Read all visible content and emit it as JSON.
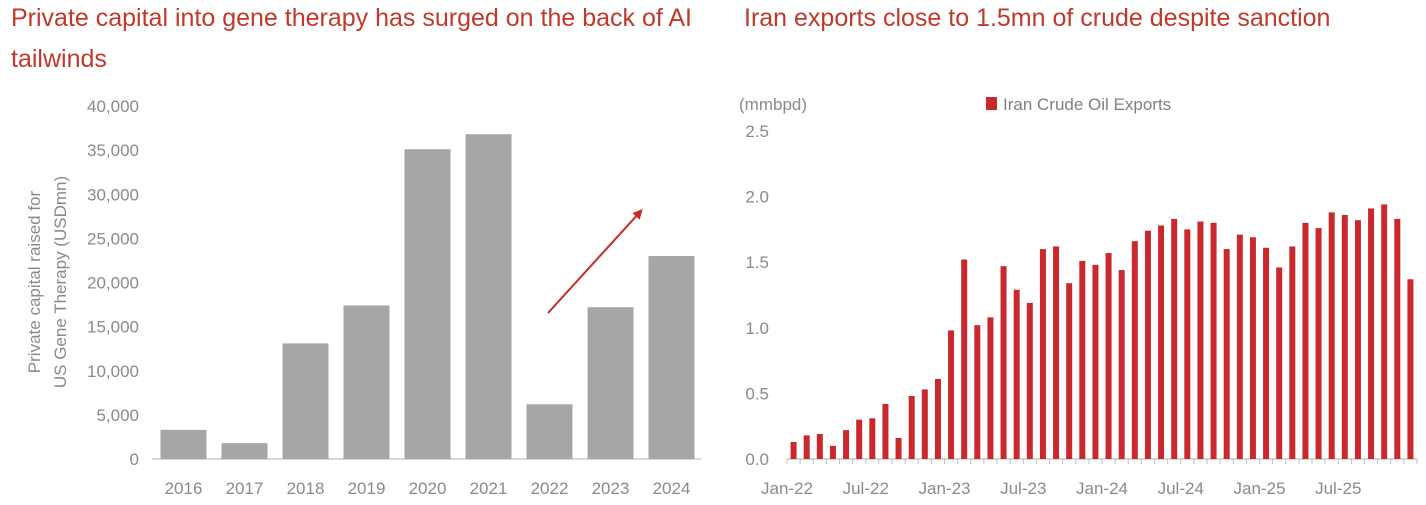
{
  "colors": {
    "title": "#c0392b",
    "bar_grey": "#a6a6a6",
    "bar_red": "#c9282d",
    "arrow": "#c9282d",
    "axis": "#bfbfbf",
    "text": "#8a8a8a"
  },
  "chart_data": [
    {
      "type": "bar",
      "title": "Private capital into gene therapy has surged on the back of AI tailwinds",
      "xlabel": "",
      "ylabel_line1": "Private capital raised for",
      "ylabel_line2": "US Gene Therapy (USDmn)",
      "ylim": [
        0,
        40000
      ],
      "yticks": [
        0,
        5000,
        10000,
        15000,
        20000,
        25000,
        30000,
        35000,
        40000
      ],
      "ytick_labels": [
        "0",
        "5,000",
        "10,000",
        "15,000",
        "20,000",
        "25,000",
        "30,000",
        "35,000",
        "40,000"
      ],
      "categories": [
        "2016",
        "2017",
        "2018",
        "2019",
        "2020",
        "2021",
        "2022",
        "2023",
        "2024"
      ],
      "values": [
        3300,
        1800,
        13100,
        17400,
        35100,
        36800,
        6200,
        17200,
        23000
      ],
      "annotation": "upward arrow",
      "grid": false
    },
    {
      "type": "bar",
      "title": "Iran exports close to 1.5mn of crude despite sanction",
      "unit_label": "(mmbpd)",
      "legend": [
        "Iran Crude Oil Exports"
      ],
      "legend_position": "top",
      "ylim": [
        0,
        2.5
      ],
      "yticks": [
        0,
        0.5,
        1.0,
        1.5,
        2.0,
        2.5
      ],
      "ytick_labels": [
        "0.0",
        "0.5",
        "1.0",
        "1.5",
        "2.0",
        "2.5"
      ],
      "xtick_labels": [
        "Jan-22",
        "Jul-22",
        "Jan-23",
        "Jul-23",
        "Jan-24",
        "Jul-24",
        "Jan-25",
        "Jul-25"
      ],
      "xtick_index": [
        0,
        6,
        12,
        18,
        24,
        30,
        36,
        42
      ],
      "series": [
        {
          "name": "Iran Crude Oil Exports",
          "values": [
            0.13,
            0.18,
            0.19,
            0.1,
            0.22,
            0.3,
            0.31,
            0.42,
            0.16,
            0.48,
            0.53,
            0.61,
            0.98,
            1.52,
            1.02,
            1.08,
            1.47,
            1.29,
            1.19,
            1.6,
            1.62,
            1.34,
            1.51,
            1.48,
            1.57,
            1.44,
            1.66,
            1.74,
            1.78,
            1.83,
            1.75,
            1.81,
            1.8,
            1.6,
            1.71,
            1.69,
            1.61,
            1.46,
            1.62,
            1.8,
            1.76,
            1.88,
            1.86,
            1.82,
            1.91,
            1.94,
            1.83,
            1.37
          ]
        }
      ],
      "grid": false
    }
  ]
}
